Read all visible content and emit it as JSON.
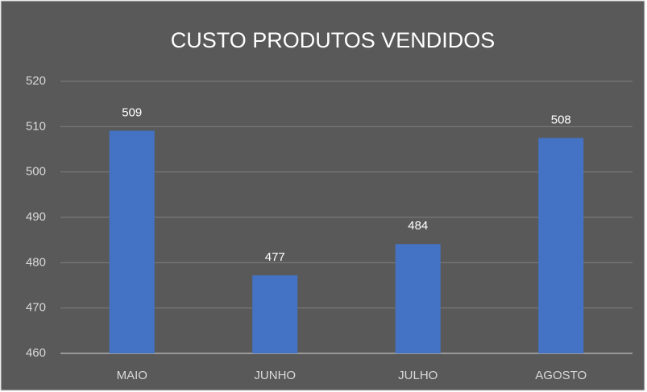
{
  "chart_data": {
    "type": "bar",
    "title": "CUSTO PRODUTOS VENDIDOS",
    "categories": [
      "MAIO",
      "JUNHO",
      "JULHO",
      "AGOSTO"
    ],
    "values": [
      509.1,
      477.2,
      484.1,
      507.5
    ],
    "value_labels": [
      "509",
      "477",
      "484",
      "508"
    ],
    "color": "#4472c4",
    "ylim": [
      460,
      520
    ],
    "yticks": [
      460,
      470,
      480,
      490,
      500,
      510,
      520
    ],
    "grid": true
  }
}
